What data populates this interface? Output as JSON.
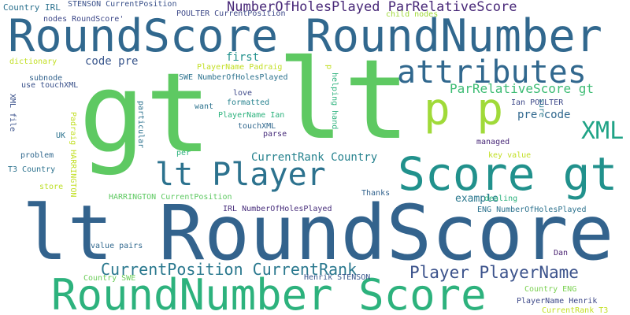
{
  "words": [
    {
      "text": "lt RoundScore",
      "color": "#33638d"
    },
    {
      "text": "gt",
      "color": "#5ec962"
    },
    {
      "text": "lt",
      "color": "#5ec962"
    },
    {
      "text": "RoundScore RoundNumber",
      "color": "#31688e"
    },
    {
      "text": "RoundNumber Score",
      "color": "#2db27d"
    },
    {
      "text": "Score gt",
      "color": "#21918c"
    },
    {
      "text": "lt Player",
      "color": "#2c728e"
    },
    {
      "text": "p p",
      "color": "#a0da39"
    },
    {
      "text": "attributes",
      "color": "#31688e"
    },
    {
      "text": "XML",
      "color": "#20a386"
    },
    {
      "text": "NumberOfHolesPlayed ParRelativeScore",
      "color": "#482878"
    },
    {
      "text": "CurrentPosition CurrentRank",
      "color": "#2a788e"
    },
    {
      "text": "Player PlayerName",
      "color": "#3b528b"
    },
    {
      "text": "ParRelativeScore gt",
      "color": "#3dbc74"
    },
    {
      "text": "CurrentRank Country",
      "color": "#26828e"
    },
    {
      "text": "first",
      "color": "#21918c"
    },
    {
      "text": "code pre",
      "color": "#39568c"
    },
    {
      "text": "pre code",
      "color": "#31688e"
    },
    {
      "text": "example",
      "color": "#2a788e"
    },
    {
      "text": "Country IRL",
      "color": "#2c728e"
    },
    {
      "text": "STENSON CurrentPosition",
      "color": "#3b528b"
    },
    {
      "text": "nodes RoundScore'",
      "color": "#3e4989"
    },
    {
      "text": "POULTER CurrentPosition",
      "color": "#3e4989"
    },
    {
      "text": "child nodes",
      "color": "#a0da39"
    },
    {
      "text": "PlayerName Padraig",
      "color": "#c2df23"
    },
    {
      "text": "SWE NumberOfHolesPlayed",
      "color": "#2c728e"
    },
    {
      "text": "dictionary",
      "color": "#c2df23"
    },
    {
      "text": "subnode",
      "color": "#33638d"
    },
    {
      "text": "use touchXML",
      "color": "#3b528b"
    },
    {
      "text": "love",
      "color": "#3e4989"
    },
    {
      "text": "formatted",
      "color": "#26828e"
    },
    {
      "text": "want",
      "color": "#2c728e"
    },
    {
      "text": "PlayerName Ian",
      "color": "#2db27d"
    },
    {
      "text": "touchXML",
      "color": "#31688e"
    },
    {
      "text": "parse",
      "color": "#472d7b"
    },
    {
      "text": "Ian POULTER",
      "color": "#3e4989"
    },
    {
      "text": "managed",
      "color": "#482878"
    },
    {
      "text": "key value",
      "color": "#c2df23"
    },
    {
      "text": "UK",
      "color": "#2c728e"
    },
    {
      "text": "problem",
      "color": "#31688e"
    },
    {
      "text": "T3 Country",
      "color": "#2c728e"
    },
    {
      "text": "store",
      "color": "#bddf26"
    },
    {
      "text": "per",
      "color": "#2db27d"
    },
    {
      "text": "HARRINGTON CurrentPosition",
      "color": "#5ec962"
    },
    {
      "text": "Thanks",
      "color": "#33638d"
    },
    {
      "text": "dealing",
      "color": "#2db27d"
    },
    {
      "text": "IRL NumberOfHolesPlayed",
      "color": "#472d7b"
    },
    {
      "text": "ENG NumberOfHolesPlayed",
      "color": "#2c728e"
    },
    {
      "text": "value pairs",
      "color": "#31688e"
    },
    {
      "text": "Dan",
      "color": "#481f70"
    },
    {
      "text": "Country SWE",
      "color": "#6ccd5a"
    },
    {
      "text": "Henrik STENSON",
      "color": "#39568c"
    },
    {
      "text": "Country ENG",
      "color": "#7ad151"
    },
    {
      "text": "PlayerName Henrik",
      "color": "#3e4989"
    },
    {
      "text": "CurrentRank T3",
      "color": "#c2df23"
    },
    {
      "text": "XML file",
      "color": "#3b528b"
    },
    {
      "text": "Padraig HARRINGTON",
      "color": "#c2df23"
    },
    {
      "text": "particular",
      "color": "#2c728e"
    },
    {
      "text": "helping hand",
      "color": "#2db27d"
    },
    {
      "text": "sure",
      "color": "#2a788e"
    },
    {
      "text": "p",
      "color": "#c2df23"
    }
  ]
}
